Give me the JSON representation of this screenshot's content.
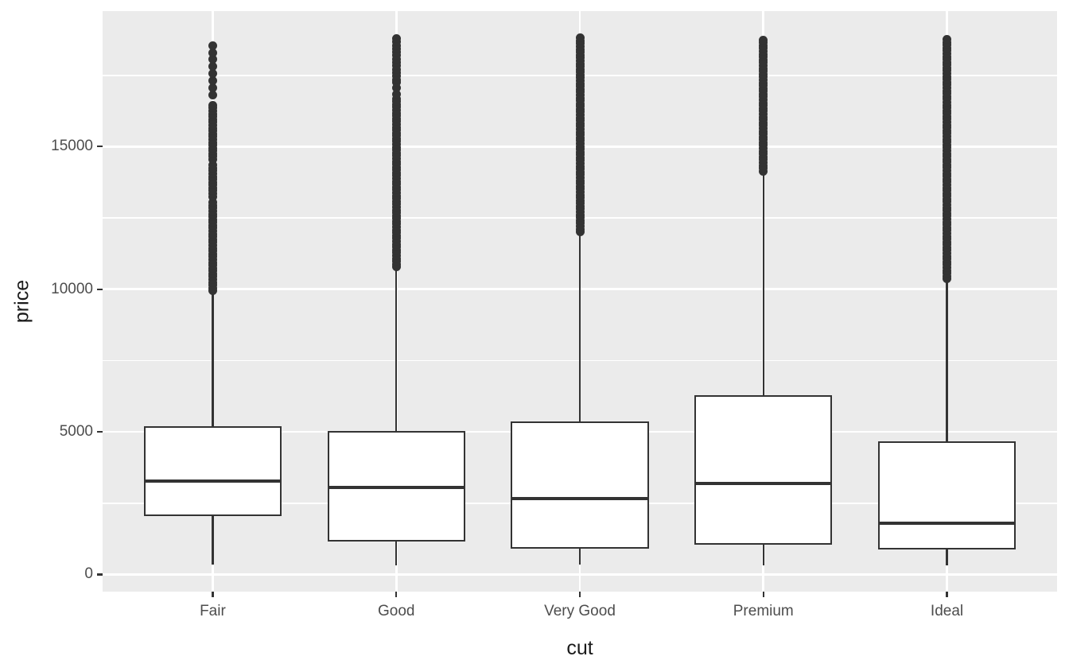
{
  "chart_data": {
    "type": "boxplot",
    "title": "",
    "xlabel": "cut",
    "ylabel": "price",
    "categories": [
      "Fair",
      "Good",
      "Very Good",
      "Premium",
      "Ideal"
    ],
    "y_axis": {
      "ticks": [
        0,
        5000,
        10000,
        15000
      ],
      "tick_labels": [
        "0",
        "5000",
        "10000",
        "15000"
      ],
      "minor_gridlines": [
        2500,
        7500,
        12500,
        17500
      ],
      "range": [
        -600,
        19750
      ]
    },
    "legend": "none",
    "grid": "major-and-minor-horizontal, major-vertical-at-categories",
    "boxes": [
      {
        "category": "Fair",
        "whisker_low": 337,
        "q1": 2050,
        "median": 3282,
        "q3": 5206,
        "whisker_high": 9880,
        "outlier_max": 18575,
        "outlier_segments": [
          {
            "from": 9940,
            "to": 13050,
            "step": 100
          },
          {
            "from": 13250,
            "to": 14350,
            "step": 100
          },
          {
            "from": 14550,
            "to": 16500,
            "step": 100
          },
          {
            "from": 16800,
            "to": 18575,
            "step": 250
          }
        ]
      },
      {
        "category": "Good",
        "whisker_low": 327,
        "q1": 1145,
        "median": 3050,
        "q3": 5028,
        "whisker_high": 10720,
        "outlier_max": 18790,
        "outlier_segments": [
          {
            "from": 10780,
            "to": 16750,
            "step": 100
          },
          {
            "from": 16850,
            "to": 17250,
            "step": 200
          },
          {
            "from": 17350,
            "to": 18790,
            "step": 120
          }
        ]
      },
      {
        "category": "Very Good",
        "whisker_low": 336,
        "q1": 912,
        "median": 2648,
        "q3": 5373,
        "whisker_high": 11950,
        "outlier_max": 18820,
        "outlier_segments": [
          {
            "from": 12010,
            "to": 18820,
            "step": 100
          }
        ]
      },
      {
        "category": "Premium",
        "whisker_low": 326,
        "q1": 1046,
        "median": 3185,
        "q3": 6296,
        "whisker_high": 14080,
        "outlier_max": 18820,
        "outlier_segments": [
          {
            "from": 14140,
            "to": 18820,
            "step": 100
          }
        ]
      },
      {
        "category": "Ideal",
        "whisker_low": 326,
        "q1": 878,
        "median": 1810,
        "q3": 4678,
        "whisker_high": 10300,
        "outlier_max": 18800,
        "outlier_segments": [
          {
            "from": 10360,
            "to": 18800,
            "step": 100
          }
        ]
      }
    ],
    "colors": {
      "outer_bg": "#FFFFFF",
      "panel_bg": "#EBEBEB",
      "gridline": "#FFFFFF",
      "box_fill": "#FFFFFF",
      "line": "#333333",
      "tick_mark": "#333333",
      "tick_text": "#4D4D4D",
      "axis_title_text": "#1A1A1A"
    }
  }
}
